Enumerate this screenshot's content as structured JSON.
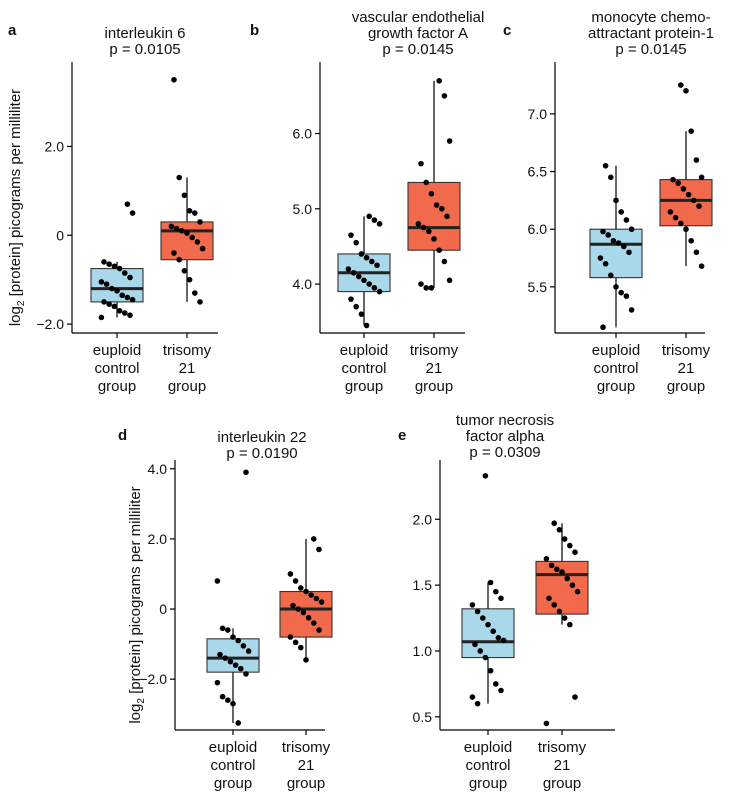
{
  "figure": {
    "ylabel_prefix": "log",
    "ylabel_subscript": "2",
    "ylabel_rest": " [protein] picograms per milliliter",
    "colors": {
      "euploid": "#a8d8ea",
      "trisomy": "#f06a4b"
    }
  },
  "chart_data": [
    {
      "letter": "a",
      "type": "box",
      "title_lines": [
        "interleukin 6",
        "p = 0.0105"
      ],
      "categories": [
        [
          "euploid",
          "control",
          "group"
        ],
        [
          "trisomy",
          "21",
          "group"
        ]
      ],
      "ylim": [
        -2.2,
        3.9
      ],
      "yticks": [
        -2.0,
        0,
        2.0
      ],
      "ytick_labels": [
        "−2.0",
        "0",
        "2.0"
      ],
      "boxes": [
        {
          "name": "euploid control group",
          "whisker_low": -1.85,
          "q1": -1.5,
          "median": -1.2,
          "q3": -0.75,
          "whisker_high": -0.6
        },
        {
          "name": "trisomy 21 group",
          "whisker_low": -1.5,
          "q1": -0.55,
          "median": 0.1,
          "q3": 0.3,
          "whisker_high": 1.3
        }
      ],
      "points": [
        [
          -1.85,
          -1.8,
          -1.75,
          -1.7,
          -1.6,
          -1.55,
          -1.5,
          -1.45,
          -1.4,
          -1.35,
          -1.25,
          -1.2,
          -1.1,
          -1.05,
          -0.95,
          -0.85,
          -0.75,
          -0.7,
          -0.65,
          -0.6,
          0.5,
          0.7
        ],
        [
          -1.5,
          -1.3,
          -1.0,
          -0.8,
          -0.55,
          -0.4,
          -0.3,
          -0.15,
          -0.05,
          0.05,
          0.1,
          0.15,
          0.2,
          0.3,
          0.5,
          0.55,
          0.9,
          1.3,
          3.5
        ]
      ]
    },
    {
      "letter": "b",
      "type": "box",
      "title_lines": [
        "vascular endothelial",
        "growth factor A",
        "p = 0.0145"
      ],
      "categories": [
        [
          "euploid",
          "control",
          "group"
        ],
        [
          "trisomy",
          "21",
          "group"
        ]
      ],
      "ylim": [
        3.35,
        6.95
      ],
      "yticks": [
        4.0,
        5.0,
        6.0
      ],
      "ytick_labels": [
        "4.0",
        "5.0",
        "6.0"
      ],
      "boxes": [
        {
          "name": "euploid control group",
          "whisker_low": 3.45,
          "q1": 3.9,
          "median": 4.15,
          "q3": 4.4,
          "whisker_high": 4.9
        },
        {
          "name": "trisomy 21 group",
          "whisker_low": 3.95,
          "q1": 4.45,
          "median": 4.75,
          "q3": 5.35,
          "whisker_high": 6.7
        }
      ],
      "points": [
        [
          3.45,
          3.6,
          3.7,
          3.8,
          3.9,
          3.95,
          4.0,
          4.05,
          4.1,
          4.15,
          4.2,
          4.25,
          4.3,
          4.35,
          4.4,
          4.55,
          4.65,
          4.8,
          4.85,
          4.9
        ],
        [
          3.95,
          3.95,
          4.0,
          4.05,
          4.3,
          4.45,
          4.6,
          4.7,
          4.75,
          4.8,
          4.9,
          5.0,
          5.05,
          5.2,
          5.35,
          5.6,
          5.9,
          6.5,
          6.7
        ]
      ]
    },
    {
      "letter": "c",
      "type": "box",
      "title_lines": [
        "monocyte chemo-",
        "attractant protein-1",
        "p = 0.0145"
      ],
      "categories": [
        [
          "euploid",
          "control",
          "group"
        ],
        [
          "trisomy",
          "21",
          "group"
        ]
      ],
      "ylim": [
        5.1,
        7.45
      ],
      "yticks": [
        5.5,
        6.0,
        6.5,
        7.0
      ],
      "ytick_labels": [
        "5.5",
        "6.0",
        "6.5",
        "7.0"
      ],
      "boxes": [
        {
          "name": "euploid control group",
          "whisker_low": 5.15,
          "q1": 5.58,
          "median": 5.87,
          "q3": 6.0,
          "whisker_high": 6.55
        },
        {
          "name": "trisomy 21 group",
          "whisker_low": 5.68,
          "q1": 6.03,
          "median": 6.25,
          "q3": 6.43,
          "whisker_high": 6.85
        }
      ],
      "points": [
        [
          5.15,
          5.3,
          5.42,
          5.45,
          5.5,
          5.6,
          5.7,
          5.75,
          5.8,
          5.85,
          5.88,
          5.9,
          5.95,
          5.98,
          6.0,
          6.08,
          6.15,
          6.25,
          6.45,
          6.55
        ],
        [
          5.68,
          5.8,
          5.9,
          6.0,
          6.05,
          6.1,
          6.15,
          6.2,
          6.25,
          6.3,
          6.35,
          6.4,
          6.43,
          6.45,
          6.6,
          6.85,
          7.2,
          7.25
        ]
      ]
    },
    {
      "letter": "d",
      "type": "box",
      "title_lines": [
        "interleukin 22",
        "p = 0.0190"
      ],
      "categories": [
        [
          "euploid",
          "control",
          "group"
        ],
        [
          "trisomy",
          "21",
          "group"
        ]
      ],
      "ylim": [
        -3.45,
        4.25
      ],
      "yticks": [
        -2.0,
        0,
        2.0,
        4.0
      ],
      "ytick_labels": [
        "−2.0",
        "0",
        "2.0",
        "4.0"
      ],
      "boxes": [
        {
          "name": "euploid control group",
          "whisker_low": -3.25,
          "q1": -1.8,
          "median": -1.4,
          "q3": -0.85,
          "whisker_high": -0.55
        },
        {
          "name": "trisomy 21 group",
          "whisker_low": -1.45,
          "q1": -0.8,
          "median": 0.0,
          "q3": 0.5,
          "whisker_high": 2.0
        }
      ],
      "points": [
        [
          -3.25,
          -2.7,
          -2.6,
          -2.5,
          -2.1,
          -1.85,
          -1.7,
          -1.6,
          -1.5,
          -1.4,
          -1.3,
          -1.2,
          -1.05,
          -0.9,
          -0.8,
          -0.6,
          -0.55,
          0.8,
          3.9
        ],
        [
          -1.45,
          -1.1,
          -0.95,
          -0.8,
          -0.6,
          -0.4,
          -0.25,
          -0.1,
          0.0,
          0.1,
          0.2,
          0.3,
          0.4,
          0.5,
          0.6,
          0.8,
          1.0,
          1.7,
          2.0
        ]
      ]
    },
    {
      "letter": "e",
      "type": "box",
      "title_lines": [
        "tumor necrosis",
        "factor alpha",
        "p = 0.0309"
      ],
      "categories": [
        [
          "euploid",
          "control",
          "group"
        ],
        [
          "trisomy",
          "21",
          "group"
        ]
      ],
      "ylim": [
        0.4,
        2.45
      ],
      "yticks": [
        0.5,
        1.0,
        1.5,
        2.0
      ],
      "ytick_labels": [
        "0.5",
        "1.0",
        "1.5",
        "2.0"
      ],
      "boxes": [
        {
          "name": "euploid control group",
          "whisker_low": 0.6,
          "q1": 0.95,
          "median": 1.07,
          "q3": 1.32,
          "whisker_high": 1.52
        },
        {
          "name": "trisomy 21 group",
          "whisker_low": 1.2,
          "q1": 1.28,
          "median": 1.58,
          "q3": 1.68,
          "whisker_high": 1.97
        }
      ],
      "points": [
        [
          0.6,
          0.65,
          0.7,
          0.75,
          0.85,
          0.95,
          1.0,
          1.05,
          1.08,
          1.1,
          1.15,
          1.2,
          1.25,
          1.3,
          1.35,
          1.4,
          1.45,
          1.52,
          2.33
        ],
        [
          0.45,
          0.65,
          1.2,
          1.25,
          1.3,
          1.35,
          1.4,
          1.45,
          1.5,
          1.55,
          1.6,
          1.62,
          1.65,
          1.7,
          1.75,
          1.8,
          1.85,
          1.92,
          1.97
        ]
      ]
    }
  ]
}
